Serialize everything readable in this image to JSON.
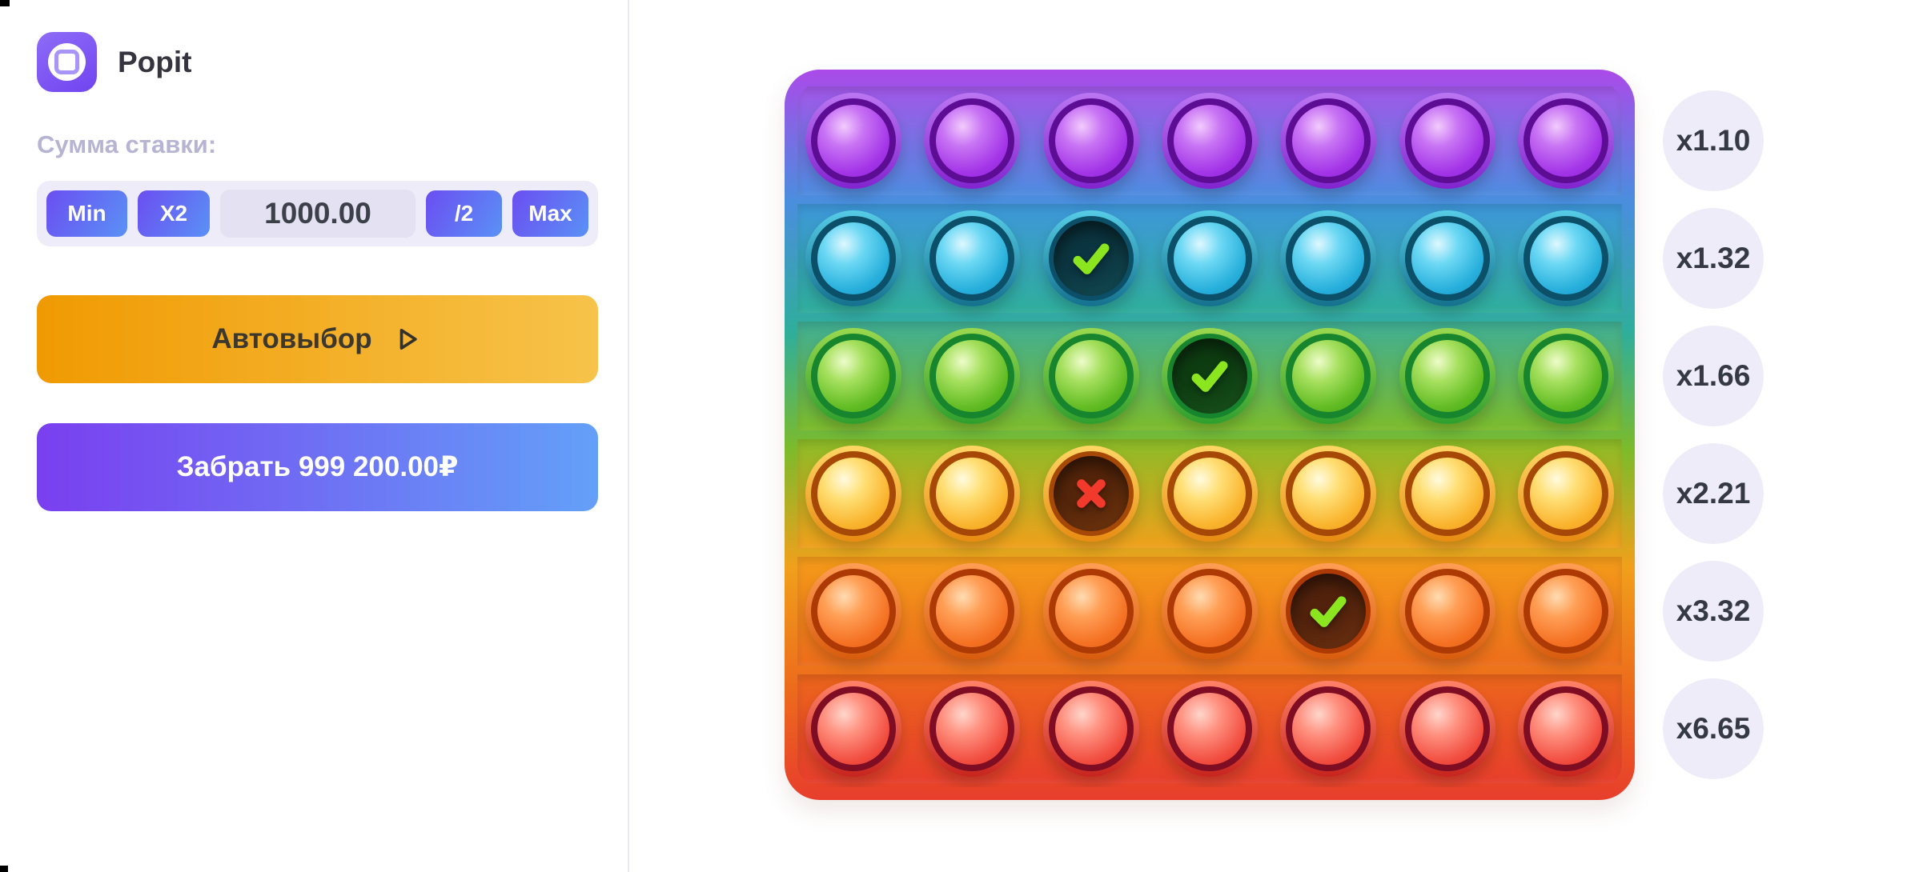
{
  "window": {
    "title": "Popit"
  },
  "bet_panel": {
    "label": "Сумма ставки:",
    "min": "Min",
    "double": "X2",
    "amount": "1000.00",
    "half": "/2",
    "max": "Max",
    "autopick": "Автовыбор",
    "cashout": "Забрать 999 200.00₽"
  },
  "board": {
    "columns": 7,
    "rows": [
      {
        "color": "purple",
        "multiplier": "x1.10",
        "cells": [
          "idle",
          "idle",
          "idle",
          "idle",
          "idle",
          "idle",
          "idle"
        ]
      },
      {
        "color": "cyan",
        "multiplier": "x1.32",
        "cells": [
          "idle",
          "idle",
          "check",
          "idle",
          "idle",
          "idle",
          "idle"
        ]
      },
      {
        "color": "green",
        "multiplier": "x1.66",
        "cells": [
          "idle",
          "idle",
          "idle",
          "check",
          "idle",
          "idle",
          "idle"
        ]
      },
      {
        "color": "gold",
        "multiplier": "x2.21",
        "cells": [
          "idle",
          "idle",
          "miss",
          "idle",
          "idle",
          "idle",
          "idle"
        ]
      },
      {
        "color": "orange",
        "multiplier": "x3.32",
        "cells": [
          "idle",
          "idle",
          "idle",
          "idle",
          "check",
          "idle",
          "idle"
        ]
      },
      {
        "color": "red",
        "multiplier": "x6.65",
        "cells": [
          "idle",
          "idle",
          "idle",
          "idle",
          "idle",
          "idle",
          "idle"
        ]
      }
    ]
  },
  "colors": {
    "accent_purple": "#7b52f2",
    "panel_divider": "#eae8f5",
    "badge_bg": "#efecfa",
    "check": "#8ce61f",
    "miss": "#f1392c",
    "chip_gradient": [
      "#6b4ef1",
      "#5a91f6"
    ],
    "autopick_gradient": [
      "#f09a02",
      "#f7c34a"
    ],
    "cashout_gradient": [
      "#7a3ff0",
      "#63a0f8"
    ],
    "frame_gradient": [
      "#ab4ae9",
      "#4a8ede",
      "#2fae9b",
      "#7cbb2b",
      "#f0a01b",
      "#ed6d1b",
      "#e73e2c"
    ],
    "palettes": {
      "purple": {
        "band": [
          "#a257e8",
          "#4e8cdf"
        ],
        "collar": [
          "#bb76f2",
          "#8224cf"
        ],
        "ring": "#5c0d94",
        "dome": [
          "#f2cbfc",
          "#c873f4",
          "#a436e8",
          "#8c1ed6"
        ],
        "hole": [
          "#2a0845",
          "#4a1a6e"
        ]
      },
      "cyan": {
        "band": [
          "#3e97da",
          "#2fae9b"
        ],
        "collar": [
          "#56cce6",
          "#15718e"
        ],
        "ring": "#0c4f68",
        "dome": [
          "#dff8fe",
          "#6cd8f4",
          "#28b0dc",
          "#1492c4"
        ],
        "hole": [
          "#0b3540",
          "#16555c"
        ]
      },
      "green": {
        "band": [
          "#3fae94",
          "#7cbb2b"
        ],
        "collar": [
          "#9ad84e",
          "#2f9e2e"
        ],
        "ring": "#17842e",
        "dome": [
          "#eefcca",
          "#a6e05e",
          "#62bc24",
          "#3fa414"
        ],
        "hole": [
          "#0e3d12",
          "#1d5c20"
        ]
      },
      "gold": {
        "band": [
          "#8abc27",
          "#f0a01b"
        ],
        "collar": [
          "#ffd665",
          "#e88c12"
        ],
        "ring": "#a64806",
        "dome": [
          "#fffbe0",
          "#ffdf75",
          "#fab42e",
          "#f0991a"
        ],
        "hole": [
          "#55250a",
          "#7c3c10"
        ]
      },
      "orange": {
        "band": [
          "#f49c1a",
          "#ed6d1b"
        ],
        "collar": [
          "#ff9e55",
          "#d85c0e"
        ],
        "ring": "#ad3a05",
        "dome": [
          "#ffdcb2",
          "#ff9f56",
          "#f57224",
          "#e25c12"
        ],
        "hole": [
          "#52220c",
          "#7a3812"
        ]
      },
      "red": {
        "band": [
          "#ec661c",
          "#e73e2c"
        ],
        "collar": [
          "#ff8268",
          "#c6251e"
        ],
        "ring": "#7e0c22",
        "dome": [
          "#ffd6cc",
          "#ff9180",
          "#f25042",
          "#da2c22"
        ],
        "hole": [
          "#451016",
          "#651c20"
        ]
      }
    }
  }
}
